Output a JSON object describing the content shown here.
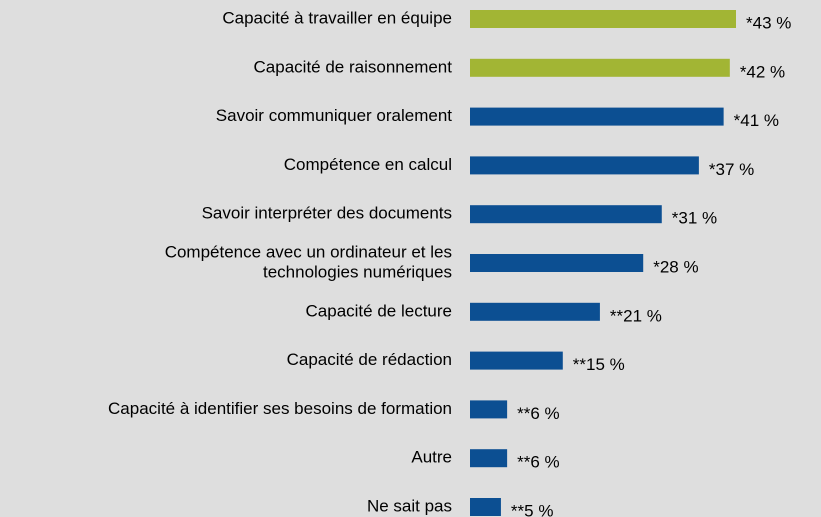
{
  "chart_data": {
    "type": "barh",
    "categories": [
      "Capacité à travailler en équipe",
      "Capacité de raisonnement",
      "Savoir communiquer oralement",
      "Compétence en calcul",
      "Savoir interpréter des documents",
      [
        "Compétence avec un ordinateur et les",
        "technologies numériques"
      ],
      "Capacité de lecture",
      "Capacité de rédaction",
      "Capacité à identifier ses besoins de formation",
      "Autre",
      "Ne sait pas"
    ],
    "values": [
      43,
      42,
      41,
      37,
      31,
      28,
      21,
      15,
      6,
      6,
      5
    ],
    "value_labels": [
      "*43 %",
      "*42 %",
      "*41 %",
      "*37 %",
      "*31 %",
      "*28 %",
      "**21 %",
      "**15 %",
      "**6 %",
      "**6 %",
      "**5 %"
    ],
    "colors": [
      "#a2b534",
      "#a2b534",
      "#0c4f92",
      "#0c4f92",
      "#0c4f92",
      "#0c4f92",
      "#0c4f92",
      "#0c4f92",
      "#0c4f92",
      "#0c4f92",
      "#0c4f92"
    ]
  }
}
